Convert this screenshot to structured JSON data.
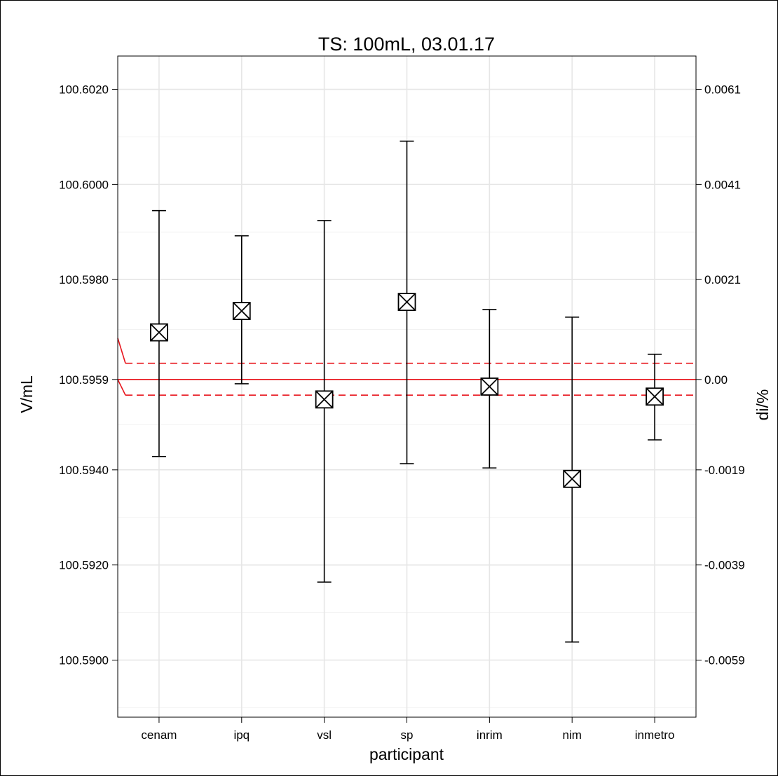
{
  "chart_data": {
    "type": "scatter",
    "title": "TS: 100mL, 03.01.17",
    "xlabel": "participant",
    "ylabel": "V/mL",
    "y2label": "di/%",
    "categories": [
      "cenam",
      "ipq",
      "vsl",
      "sp",
      "inrim",
      "nim",
      "inmetro"
    ],
    "series": [
      {
        "values": [
          100.59689,
          100.59734,
          100.59548,
          100.59753,
          100.59575,
          100.59381,
          100.59554
        ],
        "error_lower": [
          100.59428,
          100.59581,
          100.59164,
          100.59413,
          100.59404,
          100.59038,
          100.59463
        ],
        "error_upper": [
          100.59945,
          100.59892,
          100.59924,
          100.60091,
          100.59737,
          100.59721,
          100.59643
        ]
      }
    ],
    "reference_value": 100.5959,
    "reference_band": [
      100.59557,
      100.59624
    ],
    "ylim": [
      100.5888,
      100.6027
    ],
    "yticks": [
      "100.5900",
      "100.5920",
      "100.5940",
      "100.5959",
      "100.5980",
      "100.6000",
      "100.6020"
    ],
    "y2ticks": [
      "-0.0059",
      "-0.0039",
      "-0.0019",
      "0.00",
      "0.0021",
      "0.0041",
      "0.0061"
    ],
    "grid": true,
    "colors": {
      "reference": "#e8141c",
      "points": "#000000",
      "grid": "#e6e6e6"
    }
  }
}
